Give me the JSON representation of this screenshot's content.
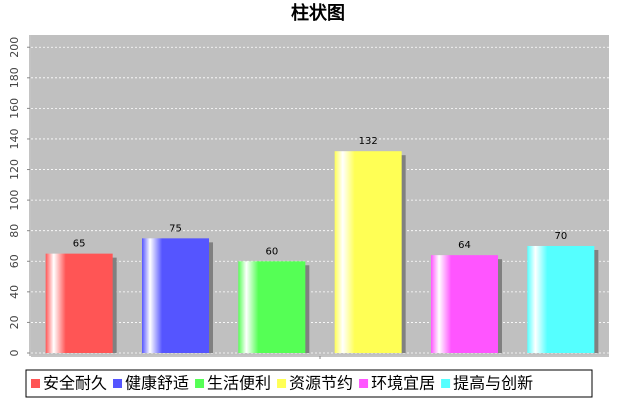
{
  "chart_data": {
    "type": "bar",
    "title": "柱状图",
    "series": [
      {
        "name": "安全耐久",
        "color": "#ff5555",
        "values": [
          65
        ]
      },
      {
        "name": "健康舒适",
        "color": "#5555ff",
        "values": [
          75
        ]
      },
      {
        "name": "生活便利",
        "color": "#55ff55",
        "values": [
          60
        ]
      },
      {
        "name": "资源节约",
        "color": "#ffff55",
        "values": [
          132
        ]
      },
      {
        "name": "环境宜居",
        "color": "#ff55ff",
        "values": [
          64
        ]
      },
      {
        "name": "提高与创新",
        "color": "#55ffff",
        "values": [
          70
        ]
      }
    ],
    "ylim": [
      0,
      208
    ],
    "yticks": [
      0,
      20,
      40,
      60,
      80,
      100,
      120,
      140,
      160,
      180,
      200
    ],
    "grid": true
  }
}
